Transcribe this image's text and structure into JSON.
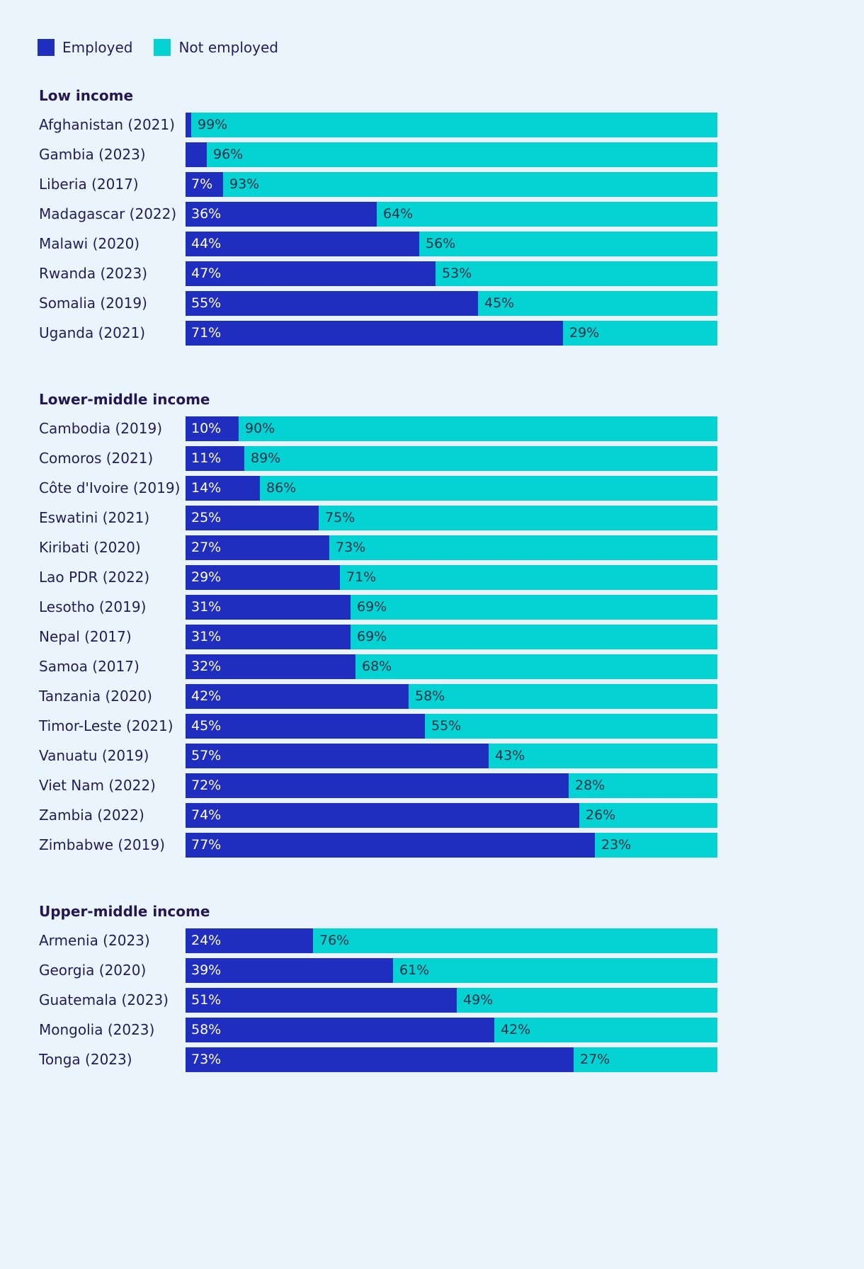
{
  "colors": {
    "employed": "#1f2ebf",
    "not_employed": "#05d2d2",
    "background": "#eaf4fd"
  },
  "legend": {
    "employed": "Employed",
    "not_employed": "Not employed"
  },
  "chart_data": {
    "type": "bar",
    "orientation": "horizontal",
    "stacked": true,
    "percent": true,
    "xlim": [
      0,
      100
    ],
    "series_names": [
      "Employed",
      "Not employed"
    ],
    "groups": [
      {
        "title": "Low income",
        "rows": [
          {
            "label": "Afghanistan (2021)",
            "employed": 1,
            "not_employed": 99,
            "employed_label": "",
            "not_employed_label": "99%"
          },
          {
            "label": "Gambia (2023)",
            "employed": 4,
            "not_employed": 96,
            "employed_label": "",
            "not_employed_label": "96%"
          },
          {
            "label": "Liberia (2017)",
            "employed": 7,
            "not_employed": 93,
            "employed_label": "7%",
            "not_employed_label": "93%"
          },
          {
            "label": "Madagascar (2022)",
            "employed": 36,
            "not_employed": 64,
            "employed_label": "36%",
            "not_employed_label": "64%"
          },
          {
            "label": "Malawi (2020)",
            "employed": 44,
            "not_employed": 56,
            "employed_label": "44%",
            "not_employed_label": "56%"
          },
          {
            "label": "Rwanda (2023)",
            "employed": 47,
            "not_employed": 53,
            "employed_label": "47%",
            "not_employed_label": "53%"
          },
          {
            "label": "Somalia (2019)",
            "employed": 55,
            "not_employed": 45,
            "employed_label": "55%",
            "not_employed_label": "45%"
          },
          {
            "label": "Uganda (2021)",
            "employed": 71,
            "not_employed": 29,
            "employed_label": "71%",
            "not_employed_label": "29%"
          }
        ]
      },
      {
        "title": "Lower-middle income",
        "rows": [
          {
            "label": "Cambodia (2019)",
            "employed": 10,
            "not_employed": 90,
            "employed_label": "10%",
            "not_employed_label": "90%"
          },
          {
            "label": "Comoros (2021)",
            "employed": 11,
            "not_employed": 89,
            "employed_label": "11%",
            "not_employed_label": "89%"
          },
          {
            "label": "Côte d'Ivoire (2019)",
            "employed": 14,
            "not_employed": 86,
            "employed_label": "14%",
            "not_employed_label": "86%"
          },
          {
            "label": "Eswatini (2021)",
            "employed": 25,
            "not_employed": 75,
            "employed_label": "25%",
            "not_employed_label": "75%"
          },
          {
            "label": "Kiribati (2020)",
            "employed": 27,
            "not_employed": 73,
            "employed_label": "27%",
            "not_employed_label": "73%"
          },
          {
            "label": "Lao PDR (2022)",
            "employed": 29,
            "not_employed": 71,
            "employed_label": "29%",
            "not_employed_label": "71%"
          },
          {
            "label": "Lesotho (2019)",
            "employed": 31,
            "not_employed": 69,
            "employed_label": "31%",
            "not_employed_label": "69%"
          },
          {
            "label": "Nepal (2017)",
            "employed": 31,
            "not_employed": 69,
            "employed_label": "31%",
            "not_employed_label": "69%"
          },
          {
            "label": "Samoa (2017)",
            "employed": 32,
            "not_employed": 68,
            "employed_label": "32%",
            "not_employed_label": "68%"
          },
          {
            "label": "Tanzania (2020)",
            "employed": 42,
            "not_employed": 58,
            "employed_label": "42%",
            "not_employed_label": "58%"
          },
          {
            "label": "Timor-Leste (2021)",
            "employed": 45,
            "not_employed": 55,
            "employed_label": "45%",
            "not_employed_label": "55%"
          },
          {
            "label": "Vanuatu (2019)",
            "employed": 57,
            "not_employed": 43,
            "employed_label": "57%",
            "not_employed_label": "43%"
          },
          {
            "label": "Viet Nam (2022)",
            "employed": 72,
            "not_employed": 28,
            "employed_label": "72%",
            "not_employed_label": "28%"
          },
          {
            "label": "Zambia (2022)",
            "employed": 74,
            "not_employed": 26,
            "employed_label": "74%",
            "not_employed_label": "26%"
          },
          {
            "label": "Zimbabwe (2019)",
            "employed": 77,
            "not_employed": 23,
            "employed_label": "77%",
            "not_employed_label": "23%"
          }
        ]
      },
      {
        "title": "Upper-middle income",
        "rows": [
          {
            "label": "Armenia (2023)",
            "employed": 24,
            "not_employed": 76,
            "employed_label": "24%",
            "not_employed_label": "76%"
          },
          {
            "label": "Georgia (2020)",
            "employed": 39,
            "not_employed": 61,
            "employed_label": "39%",
            "not_employed_label": "61%"
          },
          {
            "label": "Guatemala (2023)",
            "employed": 51,
            "not_employed": 49,
            "employed_label": "51%",
            "not_employed_label": "49%"
          },
          {
            "label": "Mongolia (2023)",
            "employed": 58,
            "not_employed": 42,
            "employed_label": "58%",
            "not_employed_label": "42%"
          },
          {
            "label": "Tonga (2023)",
            "employed": 73,
            "not_employed": 27,
            "employed_label": "73%",
            "not_employed_label": "27%"
          }
        ]
      }
    ]
  }
}
